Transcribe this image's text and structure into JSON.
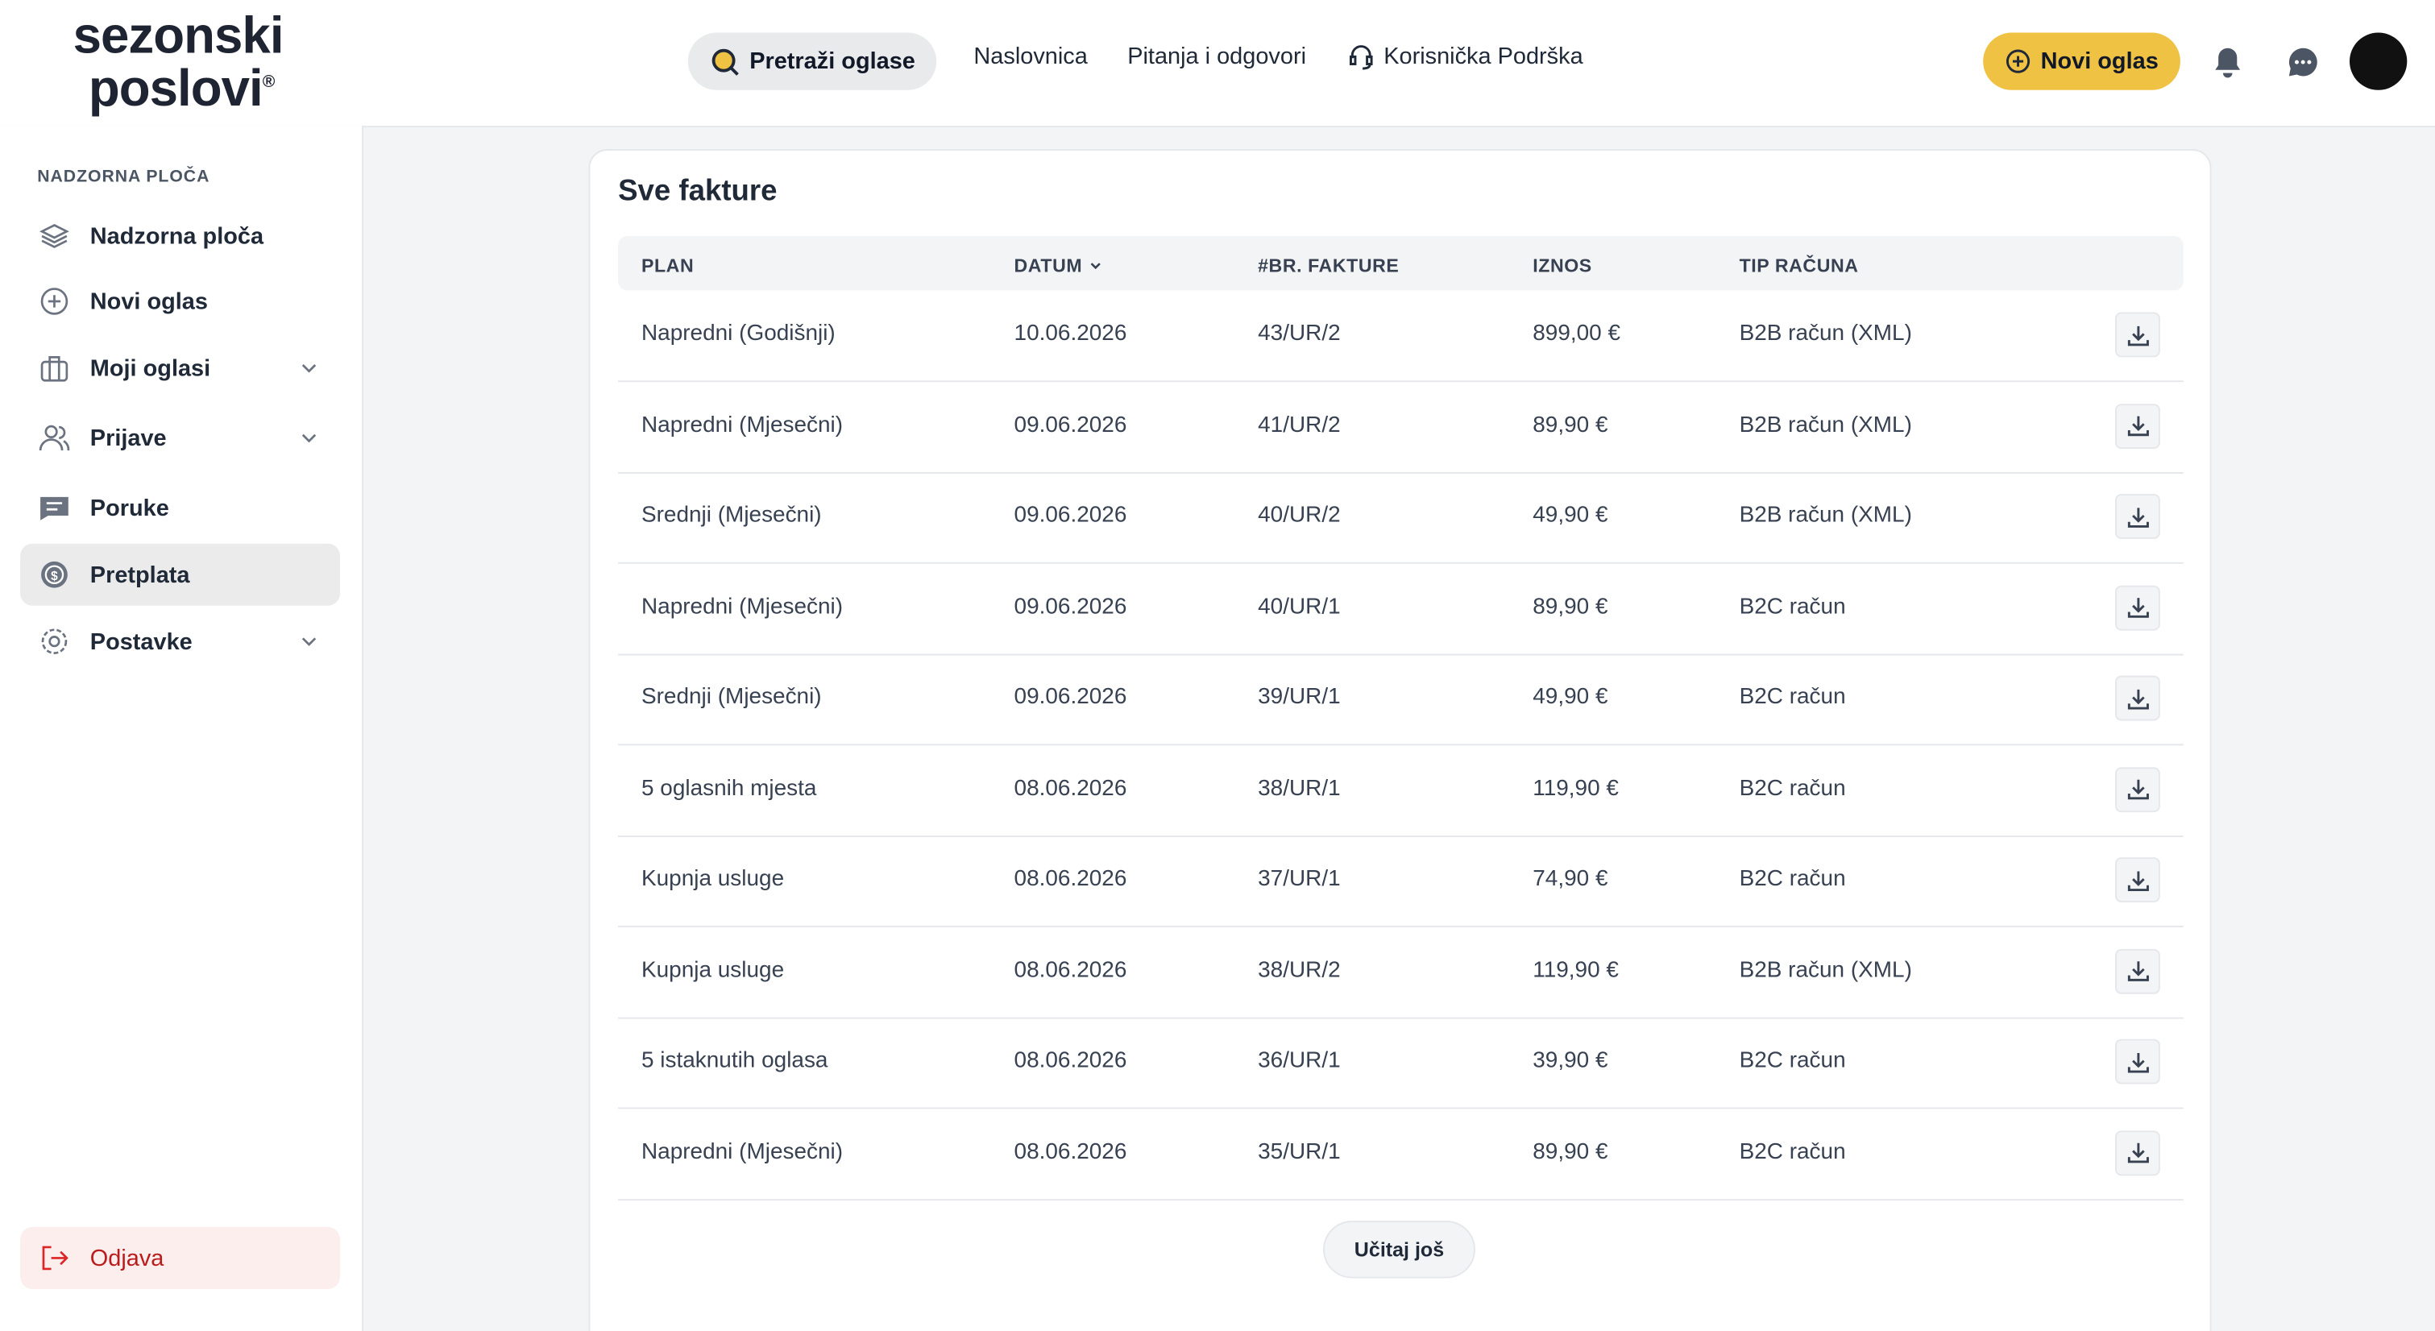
{
  "header": {
    "logo": {
      "line1": "sezonski",
      "line2": "poslovi",
      "mark": "®"
    },
    "search": "Pretraži oglase",
    "nav": [
      "Naslovnica",
      "Pitanja i odgovori",
      "Korisnička Podrška"
    ],
    "new_ad": "Novi oglas"
  },
  "sidebar": {
    "section": "NADZORNA PLOČA",
    "items": [
      "Nadzorna ploča",
      "Novi oglas",
      "Moji oglasi",
      "Prijave",
      "Poruke",
      "Pretplata",
      "Postavke"
    ],
    "logout": "Odjava"
  },
  "main": {
    "title": "Sve fakture",
    "table": {
      "columns": [
        "PLAN",
        "DATUM",
        "#BR. FAKTURE",
        "IZNOS",
        "TIP RAČUNA"
      ],
      "rows": [
        [
          "Napredni (Godišnji)",
          "10.06.2026",
          "43/UR/2",
          "899,00 €",
          "B2B račun (XML)"
        ],
        [
          "Napredni (Mjesečni)",
          "09.06.2026",
          "41/UR/2",
          "89,90 €",
          "B2B račun (XML)"
        ],
        [
          "Srednji (Mjesečni)",
          "09.06.2026",
          "40/UR/2",
          "49,90 €",
          "B2B račun (XML)"
        ],
        [
          "Napredni (Mjesečni)",
          "09.06.2026",
          "40/UR/1",
          "89,90 €",
          "B2C račun"
        ],
        [
          "Srednji (Mjesečni)",
          "09.06.2026",
          "39/UR/1",
          "49,90 €",
          "B2C račun"
        ],
        [
          "5 oglasnih mjesta",
          "08.06.2026",
          "38/UR/1",
          "119,90 €",
          "B2C račun"
        ],
        [
          "Kupnja usluge",
          "08.06.2026",
          "37/UR/1",
          "74,90 €",
          "B2C račun"
        ],
        [
          "Kupnja usluge",
          "08.06.2026",
          "38/UR/2",
          "119,90 €",
          "B2B račun (XML)"
        ],
        [
          "5 istaknutih oglasa",
          "08.06.2026",
          "36/UR/1",
          "39,90 €",
          "B2C račun"
        ],
        [
          "Napredni (Mjesečni)",
          "08.06.2026",
          "35/UR/1",
          "89,90 €",
          "B2C račun"
        ]
      ]
    },
    "load_more": "Učitaj još"
  }
}
